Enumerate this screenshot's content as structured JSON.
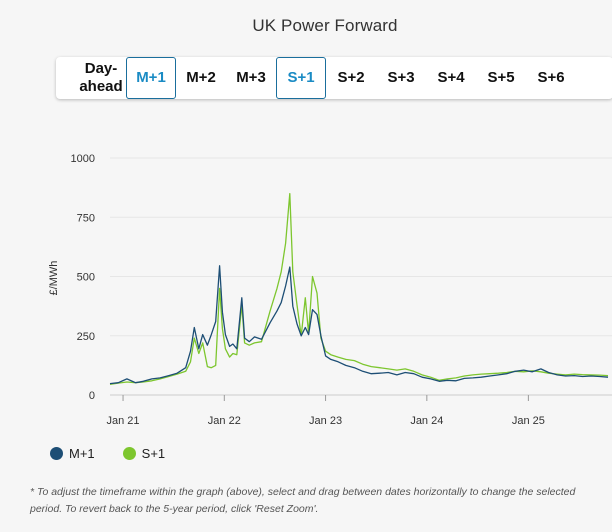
{
  "title": "UK Power Forward",
  "tabs": [
    {
      "label": "Day-ahead",
      "selected": false
    },
    {
      "label": "M+1",
      "selected": true
    },
    {
      "label": "M+2",
      "selected": false
    },
    {
      "label": "M+3",
      "selected": false
    },
    {
      "label": "S+1",
      "selected": true
    },
    {
      "label": "S+2",
      "selected": false
    },
    {
      "label": "S+3",
      "selected": false
    },
    {
      "label": "S+4",
      "selected": false
    },
    {
      "label": "S+5",
      "selected": false
    },
    {
      "label": "S+6",
      "selected": false
    }
  ],
  "colors": {
    "m1": "#1d4e75",
    "s1": "#7dc62e",
    "accent": "#1a8bc4"
  },
  "legend": [
    {
      "name": "M+1",
      "color": "#1d4e75"
    },
    {
      "name": "S+1",
      "color": "#7dc62e"
    }
  ],
  "footnote": "* To adjust the timeframe within the graph (above), select and drag between dates horizontally to change the selected period. To revert back to the 5-year period, click 'Reset Zoom'.",
  "chart_data": {
    "type": "line",
    "title": "UK Power Forward",
    "ylabel": "£/MWh",
    "xlabel": "",
    "ylim": [
      0,
      1000
    ],
    "yticks": [
      0,
      250,
      500,
      750,
      1000
    ],
    "xlim": [
      "2020-11-15",
      "2025-10-15"
    ],
    "xticks": [
      "Jan 21",
      "Jan 22",
      "Jan 23",
      "Jan 24",
      "Jan 25"
    ],
    "grid": true,
    "legend_position": "bottom-left",
    "series": [
      {
        "name": "M+1",
        "points": [
          [
            "2020-11-15",
            48
          ],
          [
            "2020-12-15",
            52
          ],
          [
            "2021-01-15",
            68
          ],
          [
            "2021-02-15",
            52
          ],
          [
            "2021-03-15",
            58
          ],
          [
            "2021-04-15",
            68
          ],
          [
            "2021-05-15",
            72
          ],
          [
            "2021-06-15",
            82
          ],
          [
            "2021-07-15",
            92
          ],
          [
            "2021-08-15",
            115
          ],
          [
            "2021-09-01",
            185
          ],
          [
            "2021-09-15",
            285
          ],
          [
            "2021-10-01",
            195
          ],
          [
            "2021-10-15",
            255
          ],
          [
            "2021-11-01",
            210
          ],
          [
            "2021-11-15",
            255
          ],
          [
            "2021-12-01",
            310
          ],
          [
            "2021-12-15",
            545
          ],
          [
            "2021-12-25",
            350
          ],
          [
            "2022-01-05",
            255
          ],
          [
            "2022-01-20",
            205
          ],
          [
            "2022-02-01",
            215
          ],
          [
            "2022-02-15",
            195
          ],
          [
            "2022-03-05",
            410
          ],
          [
            "2022-03-15",
            240
          ],
          [
            "2022-04-01",
            225
          ],
          [
            "2022-04-20",
            245
          ],
          [
            "2022-05-15",
            235
          ],
          [
            "2022-06-15",
            305
          ],
          [
            "2022-07-10",
            355
          ],
          [
            "2022-07-25",
            390
          ],
          [
            "2022-08-10",
            460
          ],
          [
            "2022-08-25",
            540
          ],
          [
            "2022-09-05",
            375
          ],
          [
            "2022-09-20",
            300
          ],
          [
            "2022-10-05",
            250
          ],
          [
            "2022-10-20",
            285
          ],
          [
            "2022-11-01",
            255
          ],
          [
            "2022-11-15",
            360
          ],
          [
            "2022-12-01",
            340
          ],
          [
            "2022-12-15",
            250
          ],
          [
            "2023-01-01",
            165
          ],
          [
            "2023-01-20",
            150
          ],
          [
            "2023-02-15",
            140
          ],
          [
            "2023-03-15",
            125
          ],
          [
            "2023-04-15",
            115
          ],
          [
            "2023-05-15",
            100
          ],
          [
            "2023-06-15",
            90
          ],
          [
            "2023-07-15",
            92
          ],
          [
            "2023-08-15",
            95
          ],
          [
            "2023-09-15",
            85
          ],
          [
            "2023-10-15",
            95
          ],
          [
            "2023-11-15",
            90
          ],
          [
            "2023-12-15",
            75
          ],
          [
            "2024-01-15",
            68
          ],
          [
            "2024-02-15",
            58
          ],
          [
            "2024-03-15",
            62
          ],
          [
            "2024-04-15",
            60
          ],
          [
            "2024-05-15",
            70
          ],
          [
            "2024-06-15",
            72
          ],
          [
            "2024-07-15",
            75
          ],
          [
            "2024-08-15",
            80
          ],
          [
            "2024-09-15",
            85
          ],
          [
            "2024-10-15",
            90
          ],
          [
            "2024-11-15",
            100
          ],
          [
            "2024-12-15",
            105
          ],
          [
            "2025-01-15",
            98
          ],
          [
            "2025-02-15",
            110
          ],
          [
            "2025-03-15",
            95
          ],
          [
            "2025-04-15",
            85
          ],
          [
            "2025-05-15",
            80
          ],
          [
            "2025-06-15",
            82
          ],
          [
            "2025-07-15",
            78
          ],
          [
            "2025-08-15",
            80
          ],
          [
            "2025-09-15",
            78
          ],
          [
            "2025-10-15",
            75
          ]
        ]
      },
      {
        "name": "S+1",
        "points": [
          [
            "2020-11-15",
            45
          ],
          [
            "2020-12-15",
            50
          ],
          [
            "2021-01-15",
            55
          ],
          [
            "2021-02-15",
            52
          ],
          [
            "2021-03-15",
            55
          ],
          [
            "2021-04-15",
            60
          ],
          [
            "2021-05-15",
            68
          ],
          [
            "2021-06-15",
            78
          ],
          [
            "2021-07-15",
            88
          ],
          [
            "2021-08-15",
            100
          ],
          [
            "2021-09-01",
            140
          ],
          [
            "2021-09-15",
            240
          ],
          [
            "2021-10-01",
            175
          ],
          [
            "2021-10-15",
            220
          ],
          [
            "2021-11-01",
            120
          ],
          [
            "2021-11-15",
            115
          ],
          [
            "2021-12-01",
            125
          ],
          [
            "2021-12-15",
            450
          ],
          [
            "2021-12-25",
            280
          ],
          [
            "2022-01-05",
            195
          ],
          [
            "2022-01-20",
            160
          ],
          [
            "2022-02-01",
            175
          ],
          [
            "2022-02-15",
            170
          ],
          [
            "2022-03-05",
            380
          ],
          [
            "2022-03-15",
            220
          ],
          [
            "2022-04-01",
            210
          ],
          [
            "2022-04-20",
            220
          ],
          [
            "2022-05-15",
            225
          ],
          [
            "2022-06-15",
            355
          ],
          [
            "2022-07-10",
            450
          ],
          [
            "2022-07-25",
            520
          ],
          [
            "2022-08-10",
            640
          ],
          [
            "2022-08-25",
            850
          ],
          [
            "2022-09-05",
            520
          ],
          [
            "2022-09-20",
            380
          ],
          [
            "2022-10-05",
            250
          ],
          [
            "2022-10-20",
            410
          ],
          [
            "2022-11-01",
            260
          ],
          [
            "2022-11-15",
            500
          ],
          [
            "2022-12-01",
            430
          ],
          [
            "2022-12-15",
            240
          ],
          [
            "2023-01-01",
            185
          ],
          [
            "2023-01-20",
            170
          ],
          [
            "2023-02-15",
            160
          ],
          [
            "2023-03-15",
            150
          ],
          [
            "2023-04-15",
            145
          ],
          [
            "2023-05-15",
            130
          ],
          [
            "2023-06-15",
            120
          ],
          [
            "2023-07-15",
            115
          ],
          [
            "2023-08-15",
            110
          ],
          [
            "2023-09-15",
            105
          ],
          [
            "2023-10-15",
            110
          ],
          [
            "2023-11-15",
            100
          ],
          [
            "2023-12-15",
            85
          ],
          [
            "2024-01-15",
            75
          ],
          [
            "2024-02-15",
            62
          ],
          [
            "2024-03-15",
            68
          ],
          [
            "2024-04-15",
            72
          ],
          [
            "2024-05-15",
            80
          ],
          [
            "2024-06-15",
            85
          ],
          [
            "2024-07-15",
            88
          ],
          [
            "2024-08-15",
            90
          ],
          [
            "2024-09-15",
            92
          ],
          [
            "2024-10-15",
            95
          ],
          [
            "2024-11-15",
            100
          ],
          [
            "2024-12-15",
            98
          ],
          [
            "2025-01-15",
            102
          ],
          [
            "2025-02-15",
            98
          ],
          [
            "2025-03-15",
            92
          ],
          [
            "2025-04-15",
            88
          ],
          [
            "2025-05-15",
            85
          ],
          [
            "2025-06-15",
            88
          ],
          [
            "2025-07-15",
            86
          ],
          [
            "2025-08-15",
            85
          ],
          [
            "2025-09-15",
            84
          ],
          [
            "2025-10-15",
            82
          ]
        ]
      }
    ]
  }
}
